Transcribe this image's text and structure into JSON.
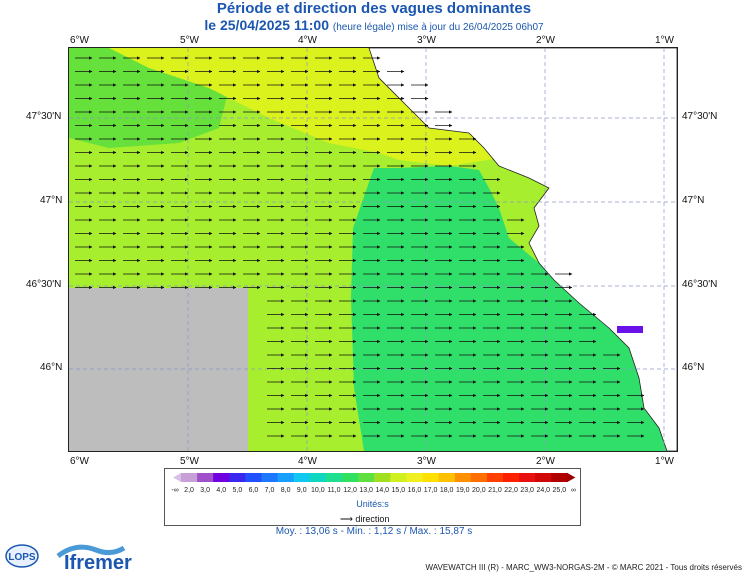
{
  "header": {
    "title": "Période et direction des vagues dominantes",
    "date_line": "le 25/04/2025 11:00",
    "date_suffix": "(heure légale) mise à jour du 26/04/2025 06h07"
  },
  "map": {
    "lon_labels": [
      "6°W",
      "5°W",
      "4°W",
      "3°W",
      "2°W",
      "1°W"
    ],
    "lat_labels": [
      "47°30'N",
      "47°N",
      "46°30'N",
      "46°N"
    ],
    "lon_range": [
      -6.0,
      -0.9
    ],
    "lat_range": [
      45.6,
      47.9
    ],
    "arrow_direction": "east",
    "colors": {
      "land": "#ffffff",
      "no_data": "#bdbdbd",
      "grid": "#8c96c8",
      "arrow": "#111111"
    }
  },
  "legend": {
    "values": [
      "2,0",
      "3,0",
      "4,0",
      "5,0",
      "6,0",
      "7,0",
      "8,0",
      "9,0",
      "10,0",
      "11,0",
      "12,0",
      "13,0",
      "14,0",
      "15,0",
      "16,0",
      "17,0",
      "18,0",
      "19,0",
      "20,0",
      "21,0",
      "22,0",
      "23,0",
      "24,0",
      "25,0"
    ],
    "less_symbol": "-∞",
    "more_symbol": "∞",
    "colors": [
      "#c8a0d8",
      "#a050c8",
      "#7000e0",
      "#3a28f0",
      "#2050ff",
      "#1e78ff",
      "#18a0ff",
      "#10c8f0",
      "#10d8c0",
      "#20e090",
      "#30e060",
      "#60e040",
      "#a0e020",
      "#d0f020",
      "#f0f020",
      "#ffe000",
      "#ffc000",
      "#ff9000",
      "#ff7000",
      "#ff4000",
      "#ff2000",
      "#e81010",
      "#d00808",
      "#b00000"
    ],
    "units": "Unités:s",
    "direction_label": "direction"
  },
  "stats": "Moy. : 13,06 s   -   Min. : 1,12 s / Max. : 15,87 s",
  "credits": "WAVEWATCH III (R) - MARC_WW3-NORGAS-2M - © MARC 2021 - Tous droits réservés",
  "logos": {
    "lops": "LOPS",
    "ifremer": "Ifremer"
  }
}
